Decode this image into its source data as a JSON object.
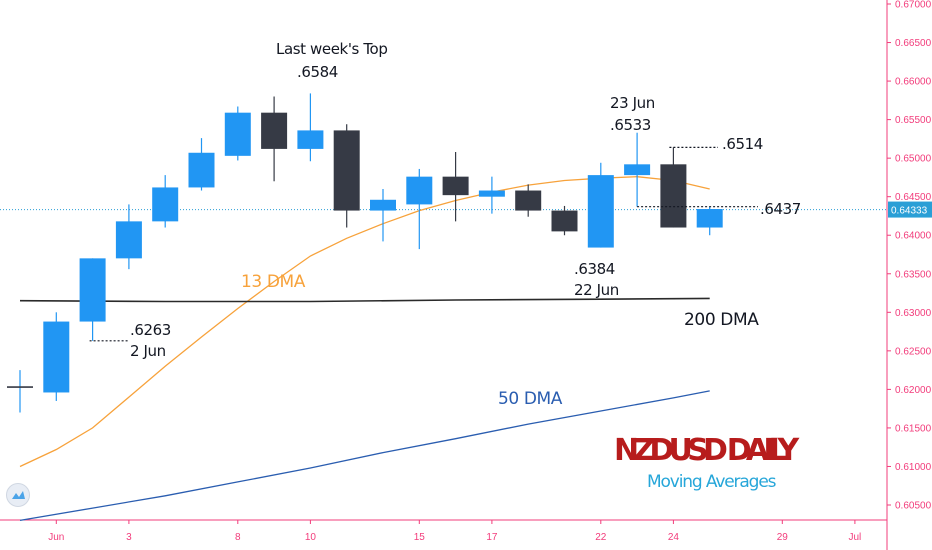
{
  "chart_data": {
    "type": "candlestick",
    "title": "NZDUSD DAILY",
    "subtitle": "Moving Averages",
    "ylim": [
      0.603,
      0.67
    ],
    "y_ticks": [
      "0.60500",
      "0.61000",
      "0.61500",
      "0.62000",
      "0.62500",
      "0.63000",
      "0.63500",
      "0.64000",
      "0.64500",
      "0.65000",
      "0.65500",
      "0.66000",
      "0.66500",
      "0.67000"
    ],
    "y_tick_values": [
      0.605,
      0.61,
      0.615,
      0.62,
      0.625,
      0.63,
      0.635,
      0.64,
      0.645,
      0.65,
      0.655,
      0.66,
      0.665,
      0.67
    ],
    "x_ticks": [
      {
        "label": "Jun",
        "slot": 1
      },
      {
        "label": "3",
        "slot": 3
      },
      {
        "label": "8",
        "slot": 6
      },
      {
        "label": "10",
        "slot": 8
      },
      {
        "label": "15",
        "slot": 11
      },
      {
        "label": "17",
        "slot": 13
      },
      {
        "label": "22",
        "slot": 16
      },
      {
        "label": "24",
        "slot": 18
      },
      {
        "label": "29",
        "slot": 21
      },
      {
        "label": "Jul",
        "slot": 23
      }
    ],
    "last_price": 0.64333,
    "last_price_label": "0.64333",
    "candles": [
      {
        "o": 0.6203,
        "h": 0.6225,
        "l": 0.617,
        "c": 0.6203
      },
      {
        "o": 0.6196,
        "h": 0.63,
        "l": 0.6185,
        "c": 0.6288
      },
      {
        "o": 0.6288,
        "h": 0.637,
        "l": 0.6263,
        "c": 0.637
      },
      {
        "o": 0.637,
        "h": 0.644,
        "l": 0.6356,
        "c": 0.6418
      },
      {
        "o": 0.6418,
        "h": 0.6478,
        "l": 0.641,
        "c": 0.6462
      },
      {
        "o": 0.6462,
        "h": 0.6526,
        "l": 0.6458,
        "c": 0.6507
      },
      {
        "o": 0.6503,
        "h": 0.6567,
        "l": 0.6497,
        "c": 0.6559
      },
      {
        "o": 0.6559,
        "h": 0.658,
        "l": 0.647,
        "c": 0.6512
      },
      {
        "o": 0.6512,
        "h": 0.6584,
        "l": 0.6496,
        "c": 0.6536
      },
      {
        "o": 0.6536,
        "h": 0.6544,
        "l": 0.641,
        "c": 0.6432
      },
      {
        "o": 0.6432,
        "h": 0.646,
        "l": 0.6392,
        "c": 0.6446
      },
      {
        "o": 0.644,
        "h": 0.6486,
        "l": 0.6382,
        "c": 0.6476
      },
      {
        "o": 0.6476,
        "h": 0.6508,
        "l": 0.6418,
        "c": 0.6452
      },
      {
        "o": 0.645,
        "h": 0.6476,
        "l": 0.6428,
        "c": 0.6458
      },
      {
        "o": 0.6458,
        "h": 0.6466,
        "l": 0.6424,
        "c": 0.6432
      },
      {
        "o": 0.6432,
        "h": 0.6438,
        "l": 0.64,
        "c": 0.6405
      },
      {
        "o": 0.6384,
        "h": 0.6494,
        "l": 0.6384,
        "c": 0.6478
      },
      {
        "o": 0.6478,
        "h": 0.6533,
        "l": 0.6437,
        "c": 0.6492
      },
      {
        "o": 0.6492,
        "h": 0.6514,
        "l": 0.641,
        "c": 0.641
      },
      {
        "o": 0.641,
        "h": 0.6437,
        "l": 0.64,
        "c": 0.6434
      }
    ],
    "series": [
      {
        "name": "13 DMA",
        "color": "#f7a23b",
        "x": [
          0,
          1,
          2,
          3,
          4,
          5,
          6,
          7,
          8,
          9,
          10,
          11,
          12,
          13,
          14,
          15,
          16,
          17,
          18,
          19
        ],
        "values": [
          0.61,
          0.6122,
          0.615,
          0.619,
          0.623,
          0.6268,
          0.6305,
          0.634,
          0.6373,
          0.6396,
          0.6415,
          0.6432,
          0.6445,
          0.6456,
          0.6465,
          0.6471,
          0.6474,
          0.6476,
          0.6471,
          0.646
        ]
      },
      {
        "name": "50 DMA",
        "color": "#2a5db0",
        "x": [
          0,
          2,
          4,
          6,
          8,
          10,
          12,
          14,
          16,
          18,
          19
        ],
        "values": [
          0.603,
          0.6046,
          0.6062,
          0.608,
          0.6098,
          0.6118,
          0.6136,
          0.6155,
          0.6172,
          0.6189,
          0.6198
        ]
      },
      {
        "name": "200 DMA",
        "color": "#2a2a2a",
        "x": [
          0,
          4,
          8,
          12,
          16,
          19
        ],
        "values": [
          0.6315,
          0.6314,
          0.6314,
          0.6316,
          0.6317,
          0.6318
        ]
      }
    ],
    "annotations": {
      "top_label": "Last week's Top",
      "top_value": ".6584",
      "jun23_date": "23 Jun",
      "jun23_value": ".6533",
      "high_right": ".6514",
      "last_right": ".6437",
      "low_value": ".6384",
      "low_date": "22 Jun",
      "jun2_value": ".6263",
      "jun2_date": "2 Jun",
      "dma13": "13 DMA",
      "dma50": "50 DMA",
      "dma200": "200 DMA"
    },
    "colors": {
      "bull": "#2196f3",
      "bear": "#363a45",
      "axis": "#f23c7b",
      "last_price": "#2a9fd6",
      "title": "#b71c1c",
      "subtitle": "#26a6d9"
    }
  }
}
